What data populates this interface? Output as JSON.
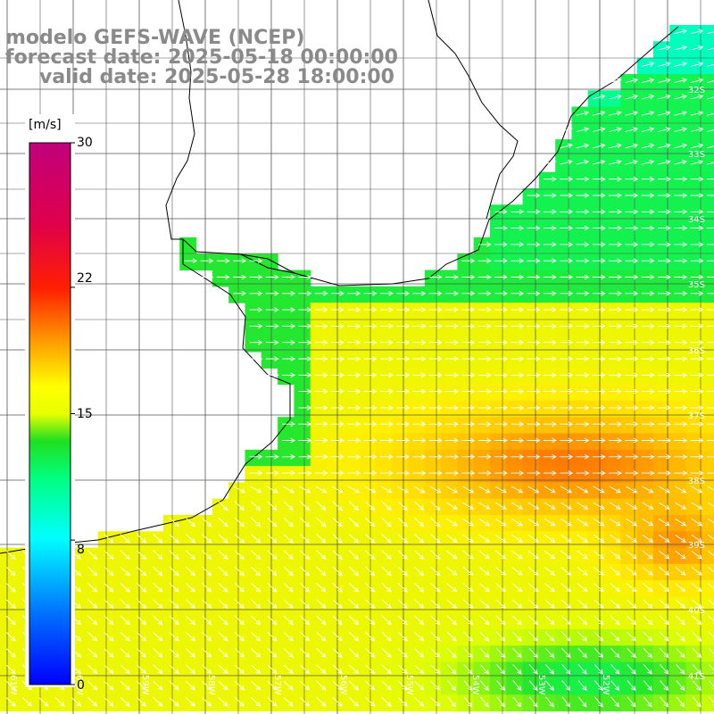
{
  "titles": {
    "model": "modelo GEFS-WAVE (NCEP)",
    "forecast": "forecast date: 2025-05-18 00:00:00",
    "valid": "valid date: 2025-05-28 18:00:00"
  },
  "colorbar": {
    "unit": "[m/s]",
    "ticks": [
      "30",
      "22",
      "15",
      "8",
      "0"
    ],
    "tick_values": [
      30,
      22,
      15,
      8,
      0
    ],
    "colors": [
      "#0000ff",
      "#00a0ff",
      "#00ffff",
      "#00ff40",
      "#20e000",
      "#80ff00",
      "#ffff00",
      "#ffa000",
      "#ff6000",
      "#ff0000",
      "#e00060",
      "#c00080"
    ]
  },
  "map": {
    "lat_labels": [
      "32S",
      "33S",
      "34S",
      "35S",
      "36S",
      "37S",
      "38S",
      "39S",
      "40S",
      "41S"
    ],
    "lat_values": [
      32,
      33,
      34,
      35,
      36,
      37,
      38,
      39,
      40,
      41
    ],
    "lon_labels": [
      "61W",
      "60W",
      "59W",
      "58W",
      "57W",
      "56W",
      "55W",
      "54W",
      "53W",
      "52W"
    ],
    "lon_values": [
      61,
      60,
      59,
      58,
      57,
      56,
      55,
      54,
      53,
      52
    ],
    "lat_range": [
      -41.5,
      -31.0
    ],
    "lon_range": [
      -61.0,
      -50.0
    ],
    "wind_direction": "west-to-east (arrows pointing east, southeast in the south)",
    "field": "wind speed over ocean, m/s",
    "colors": {
      "green": "#20e040",
      "yellow": "#ffee00",
      "orange": "#ffa000",
      "coast": "#000000",
      "grid": "#555555",
      "arrow": "#ffffff"
    }
  }
}
